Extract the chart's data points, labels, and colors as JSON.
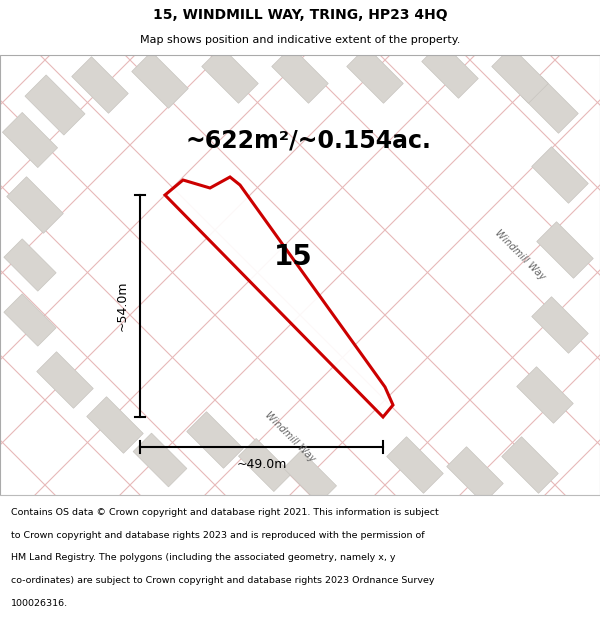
{
  "title": "15, WINDMILL WAY, TRING, HP23 4HQ",
  "subtitle": "Map shows position and indicative extent of the property.",
  "area_label": "~622m²/~0.154ac.",
  "number_label": "15",
  "dim_height_label": "~54.0m",
  "dim_width_label": "~49.0m",
  "road_label_diag": "Windmill Way",
  "road_label_right": "Windmill Way",
  "footer_lines": [
    "Contains OS data © Crown copyright and database right 2021. This information is subject",
    "to Crown copyright and database rights 2023 and is reproduced with the permission of",
    "HM Land Registry. The polygons (including the associated geometry, namely x, y",
    "co-ordinates) are subject to Crown copyright and database rights 2023 Ordnance Survey",
    "100026316."
  ],
  "bg_color": "#f5f4f2",
  "map_bg": "#f0ede8",
  "street_color": "#e8b8b8",
  "building_color": "#d8d5d0",
  "building_edge": "#c8c5c0",
  "plot_color": "#cc0000",
  "title_fontsize": 10,
  "subtitle_fontsize": 8,
  "area_fontsize": 17,
  "number_fontsize": 20,
  "dim_fontsize": 9,
  "footer_fontsize": 6.8,
  "road_fontsize": 7
}
